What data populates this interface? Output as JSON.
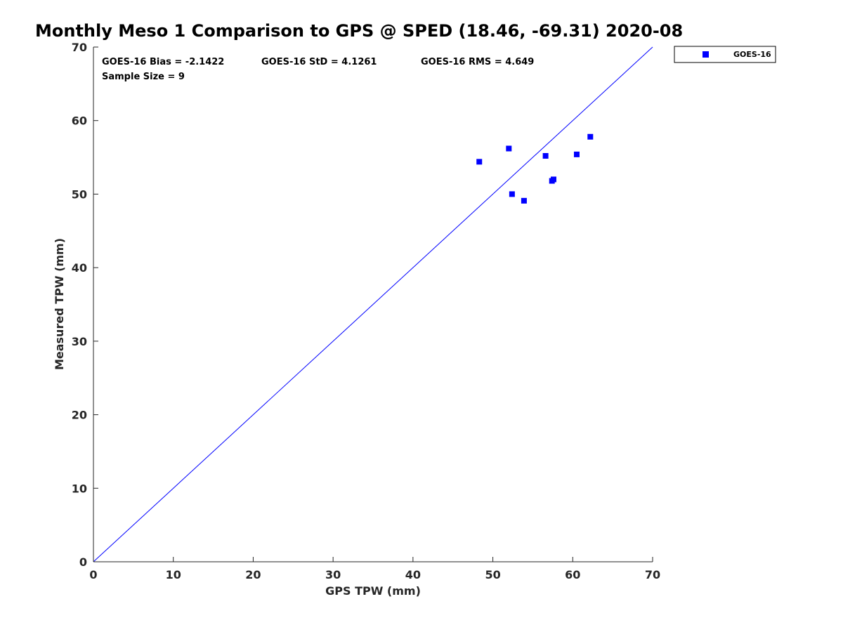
{
  "chart_data": {
    "type": "scatter",
    "title": "Monthly Meso 1 Comparison to GPS @ SPED (18.46, -69.31) 2020-08",
    "xlabel": "GPS TPW (mm)",
    "ylabel": "Measured TPW (mm)",
    "xlim": [
      0,
      70
    ],
    "ylim": [
      0,
      70
    ],
    "xticks": [
      0,
      10,
      20,
      30,
      40,
      50,
      60,
      70
    ],
    "yticks": [
      0,
      10,
      20,
      30,
      40,
      50,
      60,
      70
    ],
    "grid": false,
    "legend_position": "outside top-right",
    "reference_line": {
      "x": [
        0,
        70
      ],
      "y": [
        0,
        70
      ],
      "color": "#0000ff"
    },
    "series": [
      {
        "name": "GOES-16",
        "marker": "square",
        "color": "#0000ff",
        "points": [
          {
            "x": 48.3,
            "y": 54.4
          },
          {
            "x": 52.0,
            "y": 56.2
          },
          {
            "x": 52.4,
            "y": 50.0
          },
          {
            "x": 53.9,
            "y": 49.1
          },
          {
            "x": 56.6,
            "y": 55.2
          },
          {
            "x": 57.4,
            "y": 51.8
          },
          {
            "x": 57.6,
            "y": 52.0
          },
          {
            "x": 60.5,
            "y": 55.4
          },
          {
            "x": 62.2,
            "y": 57.8
          }
        ]
      }
    ],
    "annotations": {
      "bias": "GOES-16 Bias = -2.1422",
      "std": "GOES-16 StD = 4.1261",
      "rms": "GOES-16 RMS = 4.649",
      "sample_size": "Sample Size = 9"
    }
  }
}
